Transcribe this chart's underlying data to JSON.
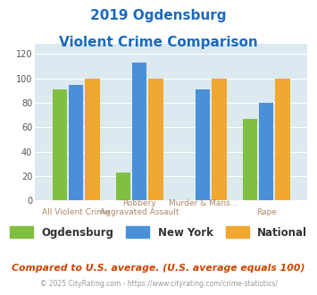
{
  "title_line1": "2019 Ogdensburg",
  "title_line2": "Violent Crime Comparison",
  "series": {
    "Ogdensburg": [
      91,
      23,
      0,
      67
    ],
    "New York": [
      95,
      113,
      91,
      80
    ],
    "National": [
      100,
      100,
      100,
      100
    ]
  },
  "colors": {
    "Ogdensburg": "#80c040",
    "New York": "#4a90d9",
    "National": "#f0a830"
  },
  "ylim": [
    0,
    128
  ],
  "yticks": [
    0,
    20,
    40,
    60,
    80,
    100,
    120
  ],
  "plot_bg": "#dce9f0",
  "title_color": "#1a6abf",
  "top_labels": [
    "",
    "Robbery",
    "Murder & Mans...",
    ""
  ],
  "bottom_labels": [
    "All Violent Crime",
    "Aggravated Assault",
    "",
    "Rape"
  ],
  "footer_text1": "Compared to U.S. average. (U.S. average equals 100)",
  "footer_text2": "© 2025 CityRating.com - https://www.cityrating.com/crime-statistics/",
  "footer_color1": "#cc4400",
  "footer_color2": "#999999"
}
